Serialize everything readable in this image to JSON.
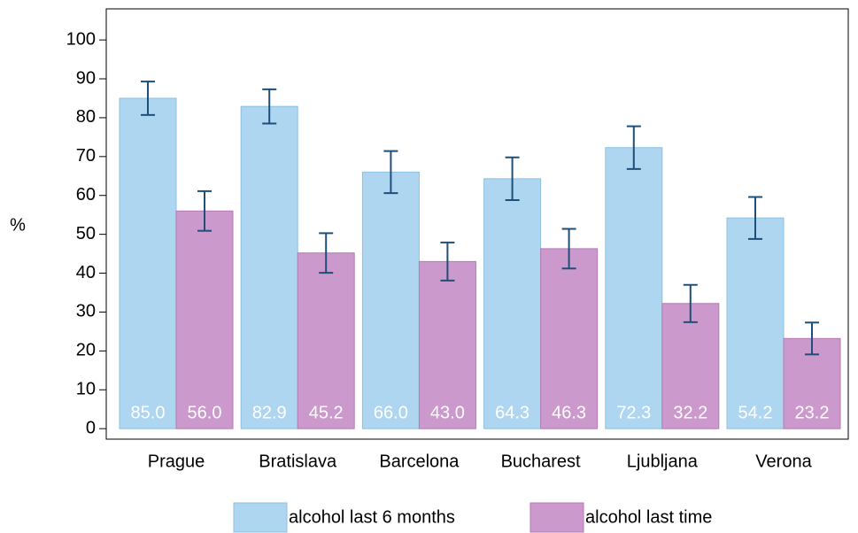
{
  "chart_data": {
    "type": "bar",
    "ylabel": "%",
    "categories": [
      "Prague",
      "Bratislava",
      "Barcelona",
      "Bucharest",
      "Ljubljana",
      "Verona"
    ],
    "series": [
      {
        "name": "alcohol last 6 months",
        "color": "#aed6f1",
        "values": [
          85.0,
          82.9,
          66.0,
          64.3,
          72.3,
          54.2
        ],
        "value_labels": [
          "85.0",
          "82.9",
          "66.0",
          "64.3",
          "72.3",
          "54.2"
        ],
        "errors": [
          4.3,
          4.4,
          5.4,
          5.5,
          5.5,
          5.4
        ]
      },
      {
        "name": "alcohol last time",
        "color": "#cc99cc",
        "values": [
          56.0,
          45.2,
          43.0,
          46.3,
          32.2,
          23.2
        ],
        "value_labels": [
          "56.0",
          "45.2",
          "43.0",
          "46.3",
          "32.2",
          "23.2"
        ],
        "errors": [
          5.1,
          5.1,
          4.9,
          5.1,
          4.8,
          4.1
        ]
      }
    ],
    "ylim": [
      -2.7,
      108
    ],
    "yticks": [
      0,
      10,
      20,
      30,
      40,
      50,
      60,
      70,
      80,
      90,
      100
    ],
    "error_bar_color": "#1f4e79",
    "legend": "bottom"
  }
}
